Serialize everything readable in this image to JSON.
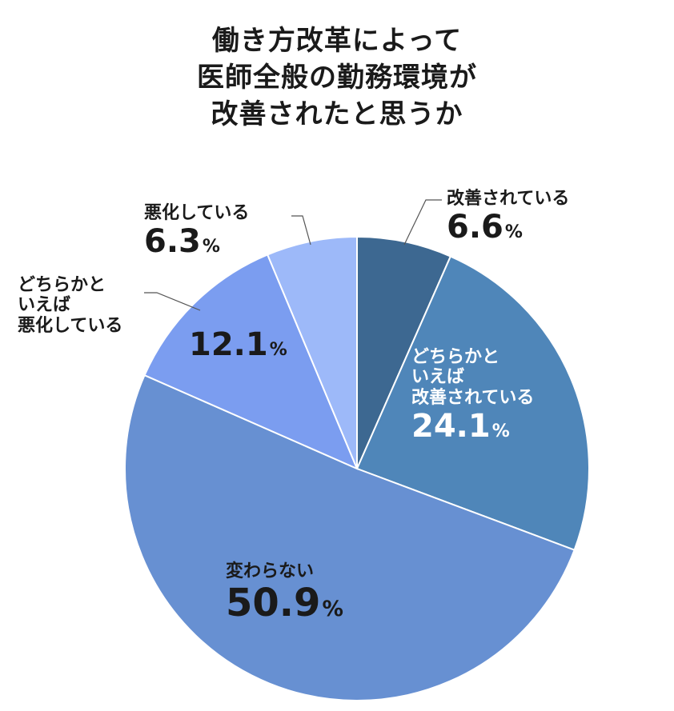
{
  "chart_data": {
    "type": "pie",
    "title_lines": [
      "働き方改革によって",
      "医師全般の勤務環境が",
      "改善されたと思うか"
    ],
    "slices": [
      {
        "label_lines": [
          "改善されている"
        ],
        "value": 6.6,
        "value_text": "6.6",
        "color": "#3d6891"
      },
      {
        "label_lines": [
          "どちらかと",
          "いえば",
          "改善されている"
        ],
        "value": 24.1,
        "value_text": "24.1",
        "color": "#4f86b9"
      },
      {
        "label_lines": [
          "変わらない"
        ],
        "value": 50.9,
        "value_text": "50.9",
        "color": "#6790d2"
      },
      {
        "label_lines": [
          "どちらかと",
          "いえば",
          "悪化している"
        ],
        "value": 12.1,
        "value_text": "12.1",
        "color": "#7b9df0"
      },
      {
        "label_lines": [
          "悪化している"
        ],
        "value": 6.3,
        "value_text": "6.3",
        "color": "#9db9f9"
      }
    ],
    "percent_sign": "%"
  }
}
